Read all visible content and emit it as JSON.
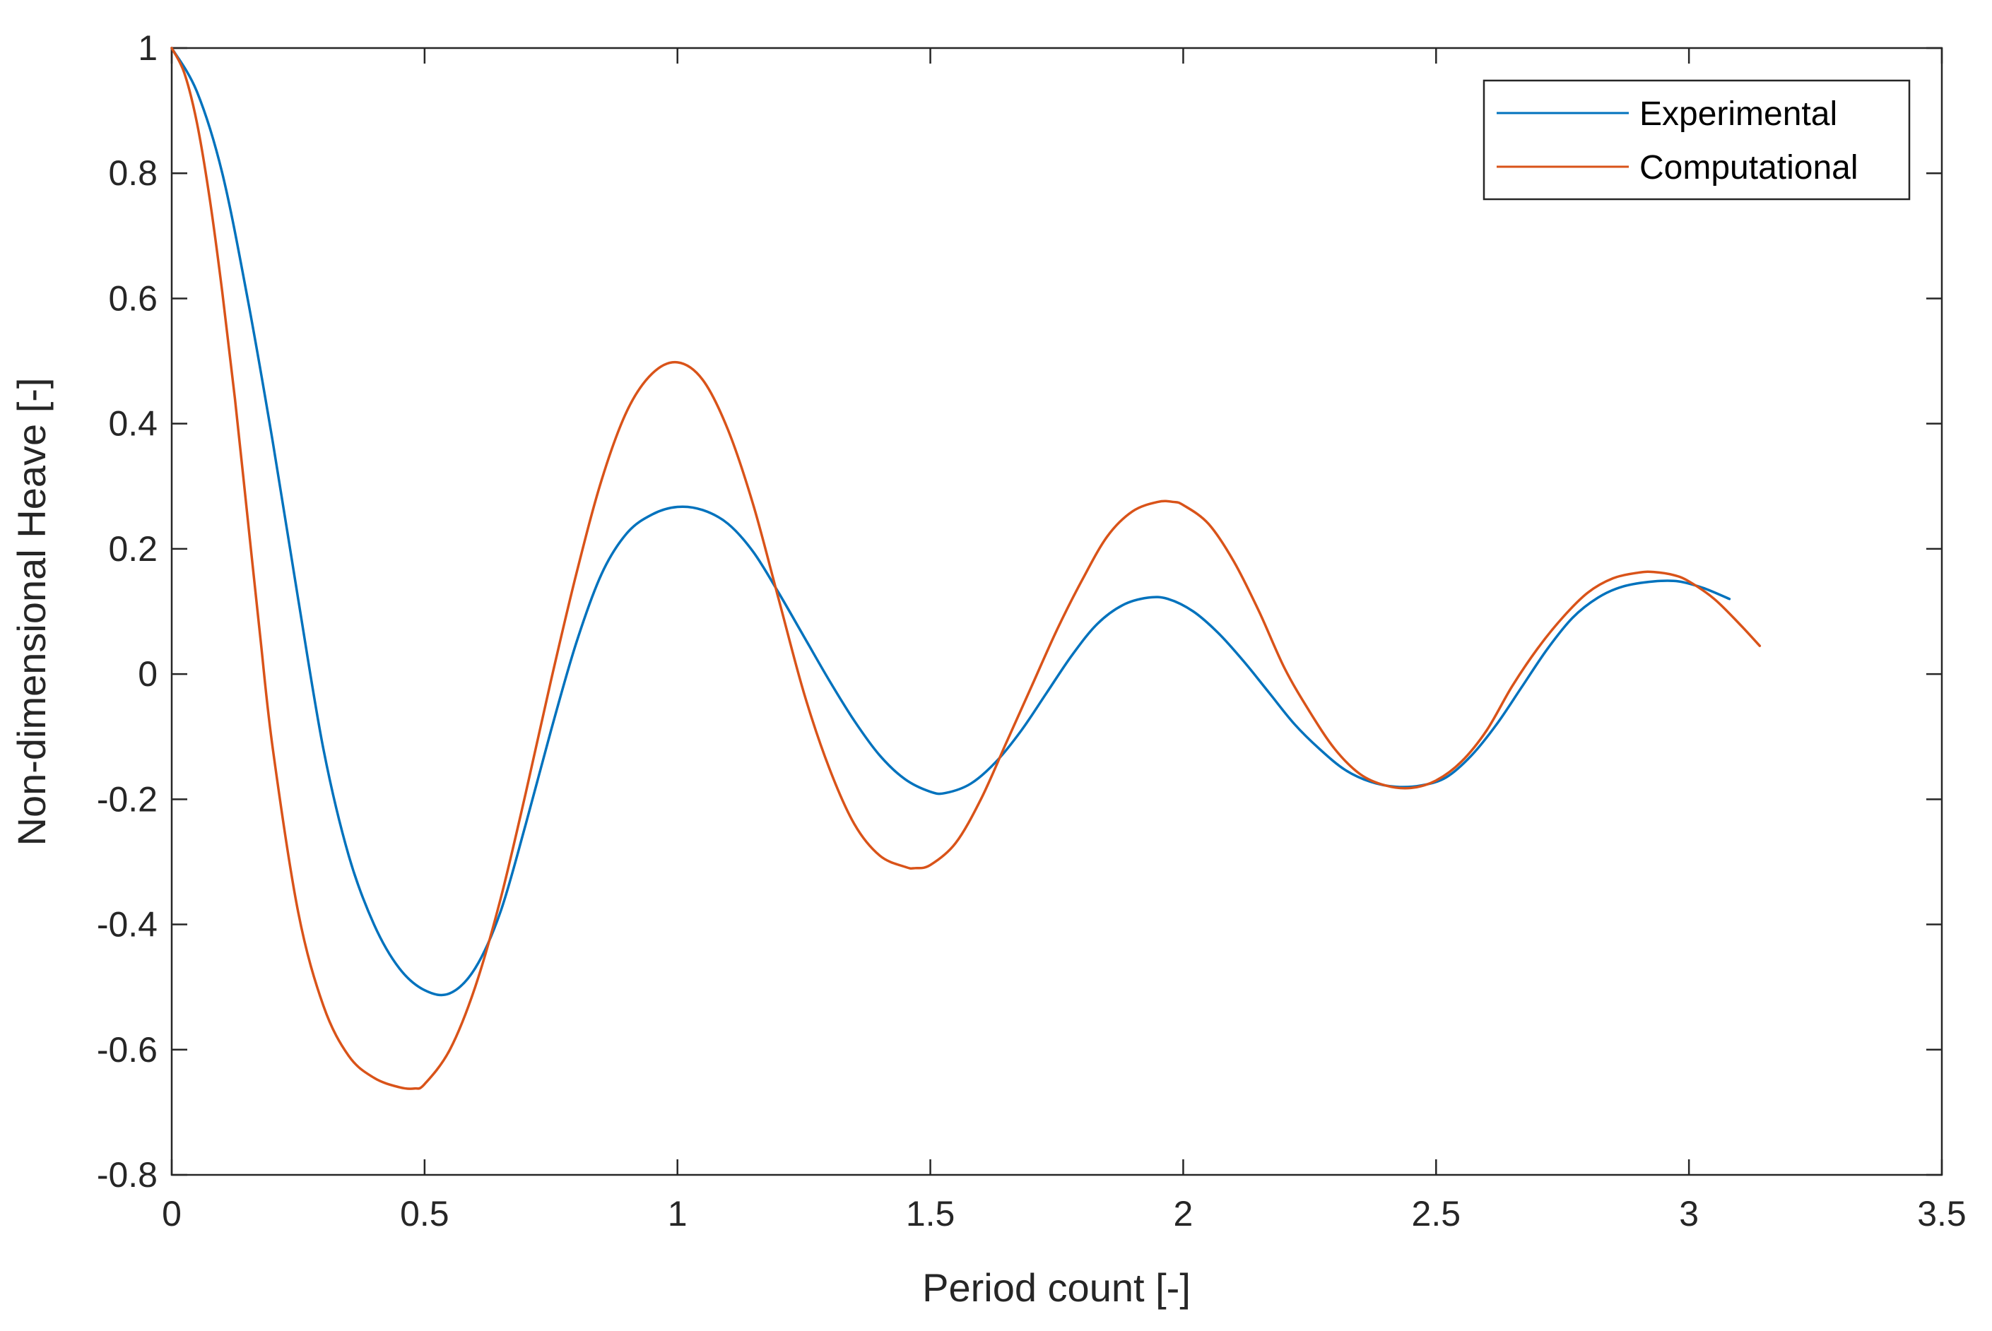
{
  "chart_data": {
    "type": "line",
    "title": "",
    "xlabel": "Period count [-]",
    "ylabel": "Non-dimensional Heave [-]",
    "xlim": [
      0,
      3.5
    ],
    "ylim": [
      -0.8,
      1
    ],
    "xticks": [
      0,
      0.5,
      1,
      1.5,
      2,
      2.5,
      3,
      3.5
    ],
    "xtick_labels": [
      "0",
      "0.5",
      "1",
      "1.5",
      "2",
      "2.5",
      "3",
      "3.5"
    ],
    "yticks": [
      -0.8,
      -0.6,
      -0.4,
      -0.2,
      0,
      0.2,
      0.4,
      0.6,
      0.8,
      1
    ],
    "ytick_labels": [
      "-0.8",
      "-0.6",
      "-0.4",
      "-0.2",
      "0",
      "0.2",
      "0.4",
      "0.6",
      "0.8",
      "1"
    ],
    "grid": false,
    "legend_position": "top-right",
    "series": [
      {
        "name": "Experimental",
        "color": "#0072BD",
        "points": [
          [
            0,
            1
          ],
          [
            0.05,
            0.93
          ],
          [
            0.1,
            0.8
          ],
          [
            0.15,
            0.6
          ],
          [
            0.2,
            0.37
          ],
          [
            0.25,
            0.12
          ],
          [
            0.3,
            -0.12
          ],
          [
            0.35,
            -0.29
          ],
          [
            0.4,
            -0.4
          ],
          [
            0.45,
            -0.47
          ],
          [
            0.5,
            -0.505
          ],
          [
            0.55,
            -0.51
          ],
          [
            0.6,
            -0.47
          ],
          [
            0.65,
            -0.38
          ],
          [
            0.7,
            -0.24
          ],
          [
            0.75,
            -0.09
          ],
          [
            0.8,
            0.05
          ],
          [
            0.85,
            0.16
          ],
          [
            0.9,
            0.225
          ],
          [
            0.95,
            0.255
          ],
          [
            1.0,
            0.267
          ],
          [
            1.05,
            0.262
          ],
          [
            1.1,
            0.24
          ],
          [
            1.15,
            0.195
          ],
          [
            1.2,
            0.13
          ],
          [
            1.25,
            0.06
          ],
          [
            1.3,
            -0.01
          ],
          [
            1.35,
            -0.075
          ],
          [
            1.4,
            -0.13
          ],
          [
            1.45,
            -0.168
          ],
          [
            1.5,
            -0.188
          ],
          [
            1.53,
            -0.19
          ],
          [
            1.58,
            -0.175
          ],
          [
            1.63,
            -0.14
          ],
          [
            1.68,
            -0.09
          ],
          [
            1.73,
            -0.03
          ],
          [
            1.78,
            0.03
          ],
          [
            1.83,
            0.08
          ],
          [
            1.88,
            0.11
          ],
          [
            1.93,
            0.122
          ],
          [
            1.97,
            0.12
          ],
          [
            2.02,
            0.1
          ],
          [
            2.07,
            0.065
          ],
          [
            2.12,
            0.02
          ],
          [
            2.17,
            -0.03
          ],
          [
            2.22,
            -0.08
          ],
          [
            2.27,
            -0.12
          ],
          [
            2.32,
            -0.153
          ],
          [
            2.37,
            -0.172
          ],
          [
            2.42,
            -0.18
          ],
          [
            2.47,
            -0.178
          ],
          [
            2.52,
            -0.165
          ],
          [
            2.57,
            -0.13
          ],
          [
            2.62,
            -0.08
          ],
          [
            2.67,
            -0.02
          ],
          [
            2.72,
            0.04
          ],
          [
            2.77,
            0.09
          ],
          [
            2.82,
            0.122
          ],
          [
            2.87,
            0.14
          ],
          [
            2.93,
            0.148
          ],
          [
            2.98,
            0.148
          ],
          [
            3.03,
            0.137
          ],
          [
            3.08,
            0.12
          ]
        ]
      },
      {
        "name": "Computational",
        "color": "#D95319",
        "points": [
          [
            0,
            1
          ],
          [
            0.025,
            0.96
          ],
          [
            0.05,
            0.88
          ],
          [
            0.075,
            0.76
          ],
          [
            0.1,
            0.61
          ],
          [
            0.125,
            0.44
          ],
          [
            0.15,
            0.25
          ],
          [
            0.175,
            0.06
          ],
          [
            0.2,
            -0.12
          ],
          [
            0.25,
            -0.38
          ],
          [
            0.3,
            -0.53
          ],
          [
            0.35,
            -0.61
          ],
          [
            0.4,
            -0.645
          ],
          [
            0.45,
            -0.66
          ],
          [
            0.48,
            -0.662
          ],
          [
            0.5,
            -0.655
          ],
          [
            0.55,
            -0.6
          ],
          [
            0.6,
            -0.5
          ],
          [
            0.65,
            -0.36
          ],
          [
            0.7,
            -0.19
          ],
          [
            0.75,
            -0.01
          ],
          [
            0.8,
            0.16
          ],
          [
            0.85,
            0.31
          ],
          [
            0.9,
            0.42
          ],
          [
            0.95,
            0.48
          ],
          [
            1.0,
            0.498
          ],
          [
            1.05,
            0.47
          ],
          [
            1.1,
            0.39
          ],
          [
            1.15,
            0.27
          ],
          [
            1.2,
            0.12
          ],
          [
            1.25,
            -0.03
          ],
          [
            1.3,
            -0.15
          ],
          [
            1.35,
            -0.24
          ],
          [
            1.4,
            -0.29
          ],
          [
            1.45,
            -0.308
          ],
          [
            1.47,
            -0.31
          ],
          [
            1.5,
            -0.305
          ],
          [
            1.55,
            -0.27
          ],
          [
            1.6,
            -0.2
          ],
          [
            1.65,
            -0.11
          ],
          [
            1.7,
            -0.02
          ],
          [
            1.75,
            0.07
          ],
          [
            1.8,
            0.15
          ],
          [
            1.85,
            0.22
          ],
          [
            1.9,
            0.26
          ],
          [
            1.95,
            0.275
          ],
          [
            1.98,
            0.275
          ],
          [
            2.0,
            0.27
          ],
          [
            2.05,
            0.24
          ],
          [
            2.1,
            0.18
          ],
          [
            2.15,
            0.1
          ],
          [
            2.2,
            0.01
          ],
          [
            2.25,
            -0.06
          ],
          [
            2.3,
            -0.12
          ],
          [
            2.35,
            -0.16
          ],
          [
            2.4,
            -0.178
          ],
          [
            2.45,
            -0.182
          ],
          [
            2.5,
            -0.17
          ],
          [
            2.55,
            -0.14
          ],
          [
            2.6,
            -0.09
          ],
          [
            2.65,
            -0.02
          ],
          [
            2.7,
            0.04
          ],
          [
            2.75,
            0.09
          ],
          [
            2.8,
            0.13
          ],
          [
            2.85,
            0.153
          ],
          [
            2.9,
            0.162
          ],
          [
            2.93,
            0.163
          ],
          [
            2.97,
            0.158
          ],
          [
            3.0,
            0.148
          ],
          [
            3.05,
            0.12
          ],
          [
            3.1,
            0.08
          ],
          [
            3.14,
            0.045
          ]
        ]
      }
    ]
  }
}
